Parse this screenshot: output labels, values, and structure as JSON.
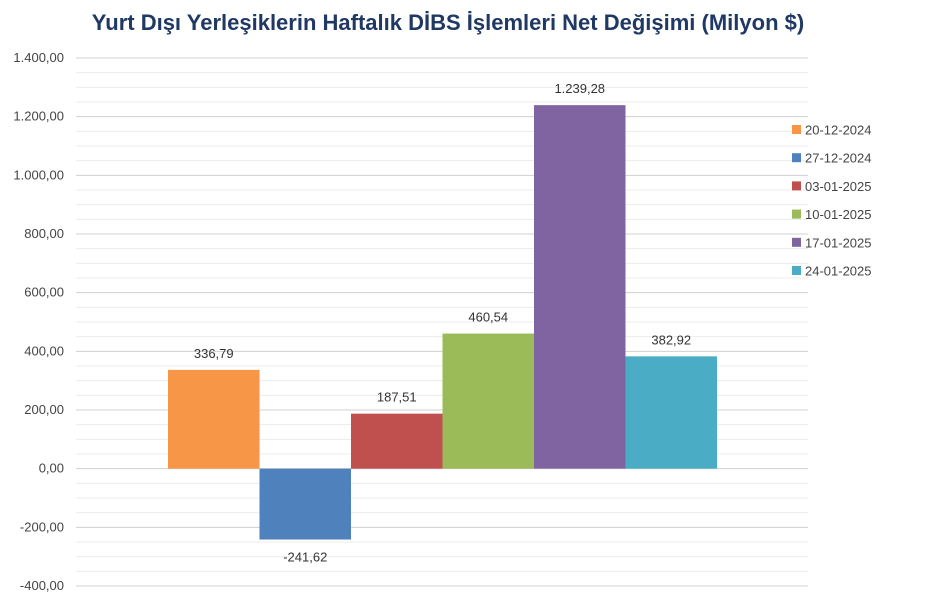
{
  "chart_data": {
    "type": "bar",
    "title": "Yurt Dışı Yerleşiklerin Haftalık DİBS İşlemleri Net Değişimi (Milyon $)",
    "xlabel": "",
    "ylabel": "",
    "ylim": [
      -400,
      1400
    ],
    "y_ticks": [
      -400,
      -200,
      0,
      200,
      400,
      600,
      800,
      1000,
      1200,
      1400
    ],
    "y_tick_labels": [
      "-400,00",
      "-200,00",
      "0,00",
      "200,00",
      "400,00",
      "600,00",
      "800,00",
      "1.000,00",
      "1.200,00",
      "1.400,00"
    ],
    "grid": true,
    "legend_position": "right",
    "series": [
      {
        "name": "20-12-2024",
        "value": 336.79,
        "label": "336,79",
        "color": "#f79646"
      },
      {
        "name": "27-12-2024",
        "value": -241.62,
        "label": "-241,62",
        "color": "#4f81bd"
      },
      {
        "name": "03-01-2025",
        "value": 187.51,
        "label": "187,51",
        "color": "#c0504d"
      },
      {
        "name": "10-01-2025",
        "value": 460.54,
        "label": "460,54",
        "color": "#9bbb59"
      },
      {
        "name": "17-01-2025",
        "value": 1239.28,
        "label": "1.239,28",
        "color": "#8064a2"
      },
      {
        "name": "24-01-2025",
        "value": 382.92,
        "label": "382,92",
        "color": "#4bacc6"
      }
    ]
  }
}
